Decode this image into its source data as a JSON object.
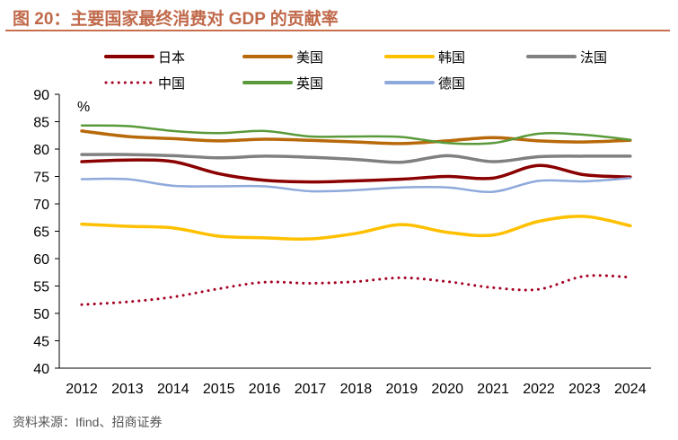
{
  "title": "图 20：主要国家最终消费对 GDP 的贡献率",
  "source": "资料来源：Ifind、招商证券",
  "chart_data": {
    "type": "line",
    "title": "图 20：主要国家最终消费对 GDP 的贡献率",
    "ylabel": "%",
    "ylim": [
      40,
      90
    ],
    "yticks": [
      40,
      45,
      50,
      55,
      60,
      65,
      70,
      75,
      80,
      85,
      90
    ],
    "x": [
      "2012",
      "2013",
      "2014",
      "2015",
      "2016",
      "2017",
      "2018",
      "2019",
      "2020",
      "2021",
      "2022",
      "2023",
      "2024"
    ],
    "grid": false,
    "legend": "top",
    "series": [
      {
        "name": "日本",
        "color": "#8b0000",
        "style": "solid",
        "values": [
          77.7,
          78,
          77.7,
          75.5,
          74.3,
          74,
          74.2,
          74.5,
          75,
          74.7,
          77,
          75.3,
          74.9
        ]
      },
      {
        "name": "美国",
        "color": "#b8690a",
        "style": "solid",
        "values": [
          83.3,
          82.3,
          81.9,
          81.5,
          81.8,
          81.6,
          81.3,
          81,
          81.5,
          82.1,
          81.5,
          81.3,
          81.6
        ]
      },
      {
        "name": "韩国",
        "color": "#ffc000",
        "style": "solid",
        "values": [
          66.3,
          65.9,
          65.6,
          64.1,
          63.8,
          63.6,
          64.6,
          66.2,
          64.8,
          64.3,
          66.8,
          67.7,
          66
        ]
      },
      {
        "name": "法国",
        "color": "#808080",
        "style": "solid",
        "values": [
          79,
          79,
          78.8,
          78.4,
          78.7,
          78.5,
          78.1,
          77.6,
          78.8,
          77.7,
          78.6,
          78.7,
          78.7
        ]
      },
      {
        "name": "中国",
        "color": "#a50021",
        "style": "dotted",
        "values": [
          51.6,
          52.1,
          53,
          54.5,
          55.7,
          55.5,
          55.8,
          56.5,
          55.8,
          54.7,
          54.4,
          56.8,
          56.6
        ]
      },
      {
        "name": "英国",
        "color": "#5a9a3a",
        "style": "solid",
        "values": [
          84.3,
          84.2,
          83.3,
          82.9,
          83.3,
          82.3,
          82.3,
          82.2,
          81.1,
          81.1,
          82.8,
          82.6,
          81.7
        ]
      },
      {
        "name": "德国",
        "color": "#8ea9db",
        "style": "solid",
        "values": [
          74.5,
          74.5,
          73.3,
          73.2,
          73.2,
          72.3,
          72.5,
          73,
          73,
          72.2,
          74.2,
          74.1,
          74.7
        ]
      }
    ]
  }
}
